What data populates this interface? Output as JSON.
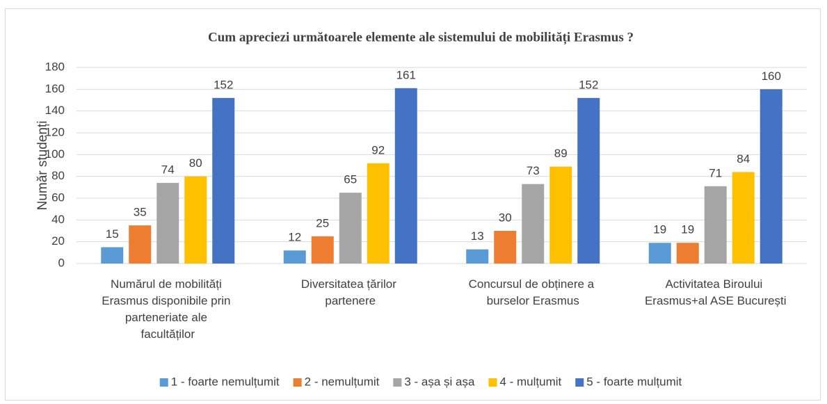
{
  "chart_data": {
    "type": "bar",
    "title": "Cum apreciezi următoarele elemente ale sistemului de mobilități Erasmus ?",
    "y_label": "Număr studenți",
    "categories": [
      "Numărul de mobilități Erasmus disponibile prin parteneriate ale facultăților",
      "Diversitatea țărilor partenere",
      "Concursul de obținere a burselor Erasmus",
      "Activitatea Biroului Erasmus+al ASE București"
    ],
    "series": [
      {
        "name": "1 - foarte nemulțumit",
        "color": "#5b9bd5",
        "values": [
          15,
          12,
          13,
          19
        ]
      },
      {
        "name": "2 - nemulțumit",
        "color": "#ed7d31",
        "values": [
          35,
          25,
          30,
          19
        ]
      },
      {
        "name": "3 - așa și așa",
        "color": "#a5a5a5",
        "values": [
          74,
          65,
          73,
          71
        ]
      },
      {
        "name": "4 - mulțumit",
        "color": "#ffc000",
        "values": [
          80,
          92,
          89,
          84
        ]
      },
      {
        "name": "5 - foarte mulțumit",
        "color": "#4472c4",
        "values": [
          152,
          161,
          152,
          160
        ]
      }
    ],
    "ylim": [
      0,
      180
    ],
    "yticks": [
      0,
      20,
      40,
      60,
      80,
      100,
      120,
      140,
      160,
      180
    ],
    "grid": true,
    "legend": "bottom"
  }
}
